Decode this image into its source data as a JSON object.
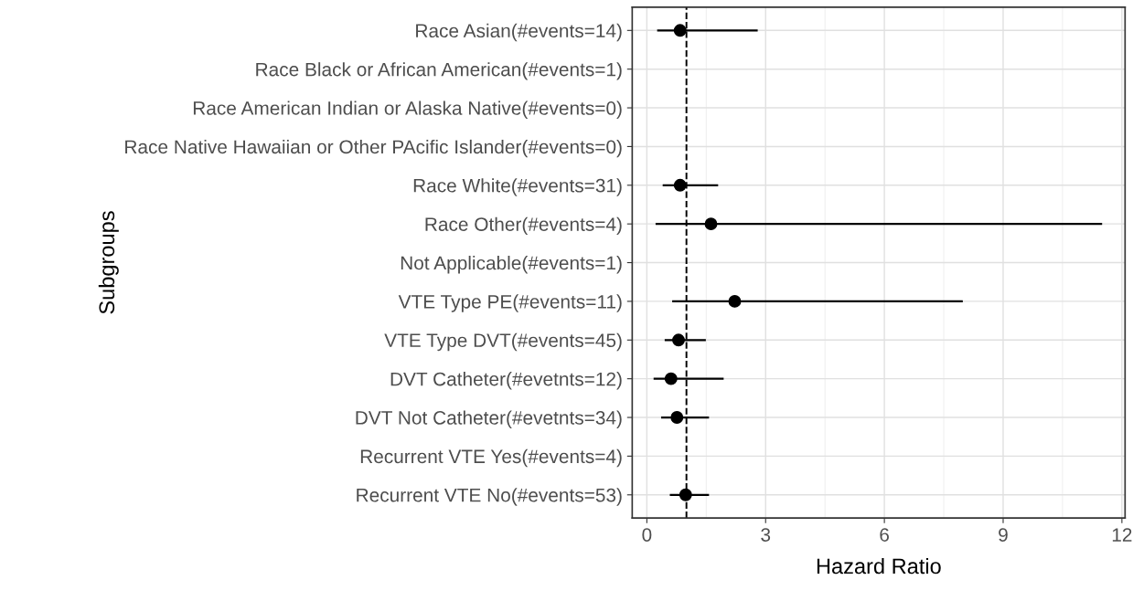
{
  "chart_data": {
    "type": "scatter",
    "orientation": "horizontal",
    "xlabel": "Hazard Ratio",
    "ylabel": "Subgroups",
    "categories": [
      "Race Asian(#events=14)",
      "Race Black or African American(#events=1)",
      "Race American Indian or Alaska Native(#events=0)",
      "Race Native Hawaiian or Other PAcific Islander(#events=0)",
      "Race White(#events=31)",
      "Race Other(#events=4)",
      "Not Applicable(#events=1)",
      "VTE Type PE(#events=11)",
      "VTE Type DVT(#events=45)",
      "DVT Catheter(#evetnts=12)",
      "DVT Not Catheter(#evetnts=34)",
      "Recurrent VTE Yes(#events=4)",
      "Recurrent VTE No(#events=53)"
    ],
    "values": [
      0.84,
      null,
      null,
      null,
      0.84,
      1.62,
      null,
      2.22,
      0.8,
      0.61,
      0.76,
      null,
      0.98
    ],
    "errors": [
      [
        0.26,
        2.8
      ],
      null,
      null,
      null,
      [
        0.4,
        1.8
      ],
      [
        0.22,
        11.5
      ],
      null,
      [
        0.64,
        7.98
      ],
      [
        0.45,
        1.49
      ],
      [
        0.17,
        1.94
      ],
      [
        0.36,
        1.57
      ],
      null,
      [
        0.58,
        1.57
      ]
    ],
    "color": "#000000",
    "marker": "circle",
    "xlim": [
      -0.37,
      12.08
    ],
    "xticks": [
      0,
      3,
      6,
      9,
      12
    ],
    "ref_lines": [
      {
        "axis": "x",
        "value": 1,
        "line_style": "dashed",
        "color": "#000000"
      }
    ],
    "grid": true
  }
}
